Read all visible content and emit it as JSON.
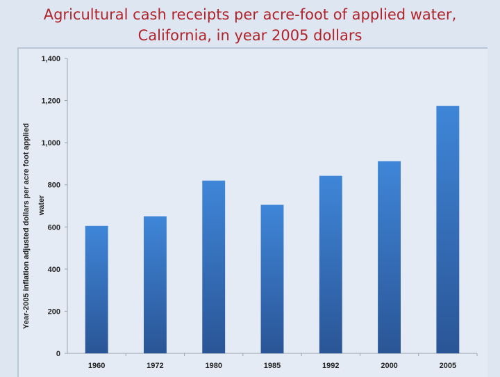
{
  "title": {
    "line1": "Agricultural cash receipts per acre-foot of applied water,",
    "line2": "California, in year 2005 dollars"
  },
  "colors": {
    "title": "#b0232b",
    "bar_top": "#3f86d8",
    "bar_bottom": "#2a5596",
    "background": "#dde6f1"
  },
  "chart_data": {
    "type": "bar",
    "categories": [
      "1960",
      "1972",
      "1980",
      "1985",
      "1992",
      "2000",
      "2005"
    ],
    "values": [
      605,
      650,
      820,
      705,
      843,
      912,
      1175
    ],
    "ylim": [
      0,
      1400
    ],
    "yticks": [
      0,
      200,
      400,
      600,
      800,
      1000,
      1200,
      1400
    ],
    "ytick_labels": [
      "0",
      "200",
      "400",
      "600",
      "800",
      "1,000",
      "1,200",
      "1,400"
    ],
    "ylabel_line1": "Year-2005 inflation adjusted dollars per acre foot applied",
    "ylabel_line2": "water",
    "xlabel": "",
    "grid": false,
    "legend": "none"
  }
}
